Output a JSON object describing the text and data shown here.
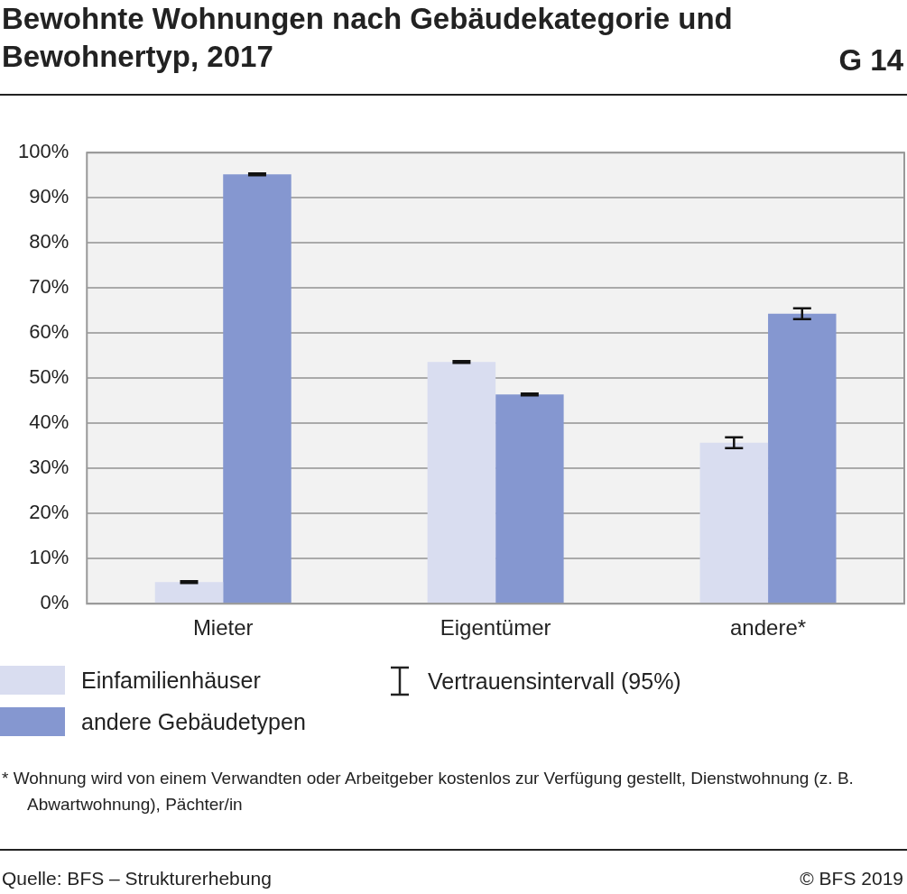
{
  "chart_data": {
    "type": "bar",
    "title": "Bewohnte Wohnungen nach Gebäudekategorie und Bewohnertyp, 2017",
    "subtitle": "G 14",
    "categories": [
      "Mieter",
      "Eigentümer",
      "andere*"
    ],
    "series": [
      {
        "name": "Einfamilienhäuser",
        "color": "#d9ddf0",
        "values": [
          4.8,
          53.6,
          35.7
        ],
        "errors": [
          0.2,
          0.2,
          1.2
        ]
      },
      {
        "name": "andere Gebäudetypen",
        "color": "#8597d0",
        "values": [
          95.2,
          46.4,
          64.3
        ],
        "errors": [
          0.2,
          0.2,
          1.2
        ]
      }
    ],
    "ylim": [
      0,
      100
    ],
    "yticks": [
      {
        "value": 0,
        "label": "0%"
      },
      {
        "value": 10,
        "label": "10%"
      },
      {
        "value": 20,
        "label": "20%"
      },
      {
        "value": 30,
        "label": "30%"
      },
      {
        "value": 40,
        "label": "40%"
      },
      {
        "value": 50,
        "label": "50%"
      },
      {
        "value": 60,
        "label": "60%"
      },
      {
        "value": 70,
        "label": "70%"
      },
      {
        "value": 80,
        "label": "80%"
      },
      {
        "value": 90,
        "label": "90%"
      },
      {
        "value": 100,
        "label": "100%"
      }
    ],
    "grid": "y",
    "legend": "bottom left",
    "annotations": [
      "Vertrauensintervall (95%)",
      "*  Wohnung wird von einem Verwandten oder Arbeitgeber kostenlos zur Verfügung gestellt, Dienstwohnung (z. B. Abwartwohnung), Pächter/in",
      "Quelle: BFS – Strukturerhebung",
      "© BFS 2019"
    ]
  }
}
